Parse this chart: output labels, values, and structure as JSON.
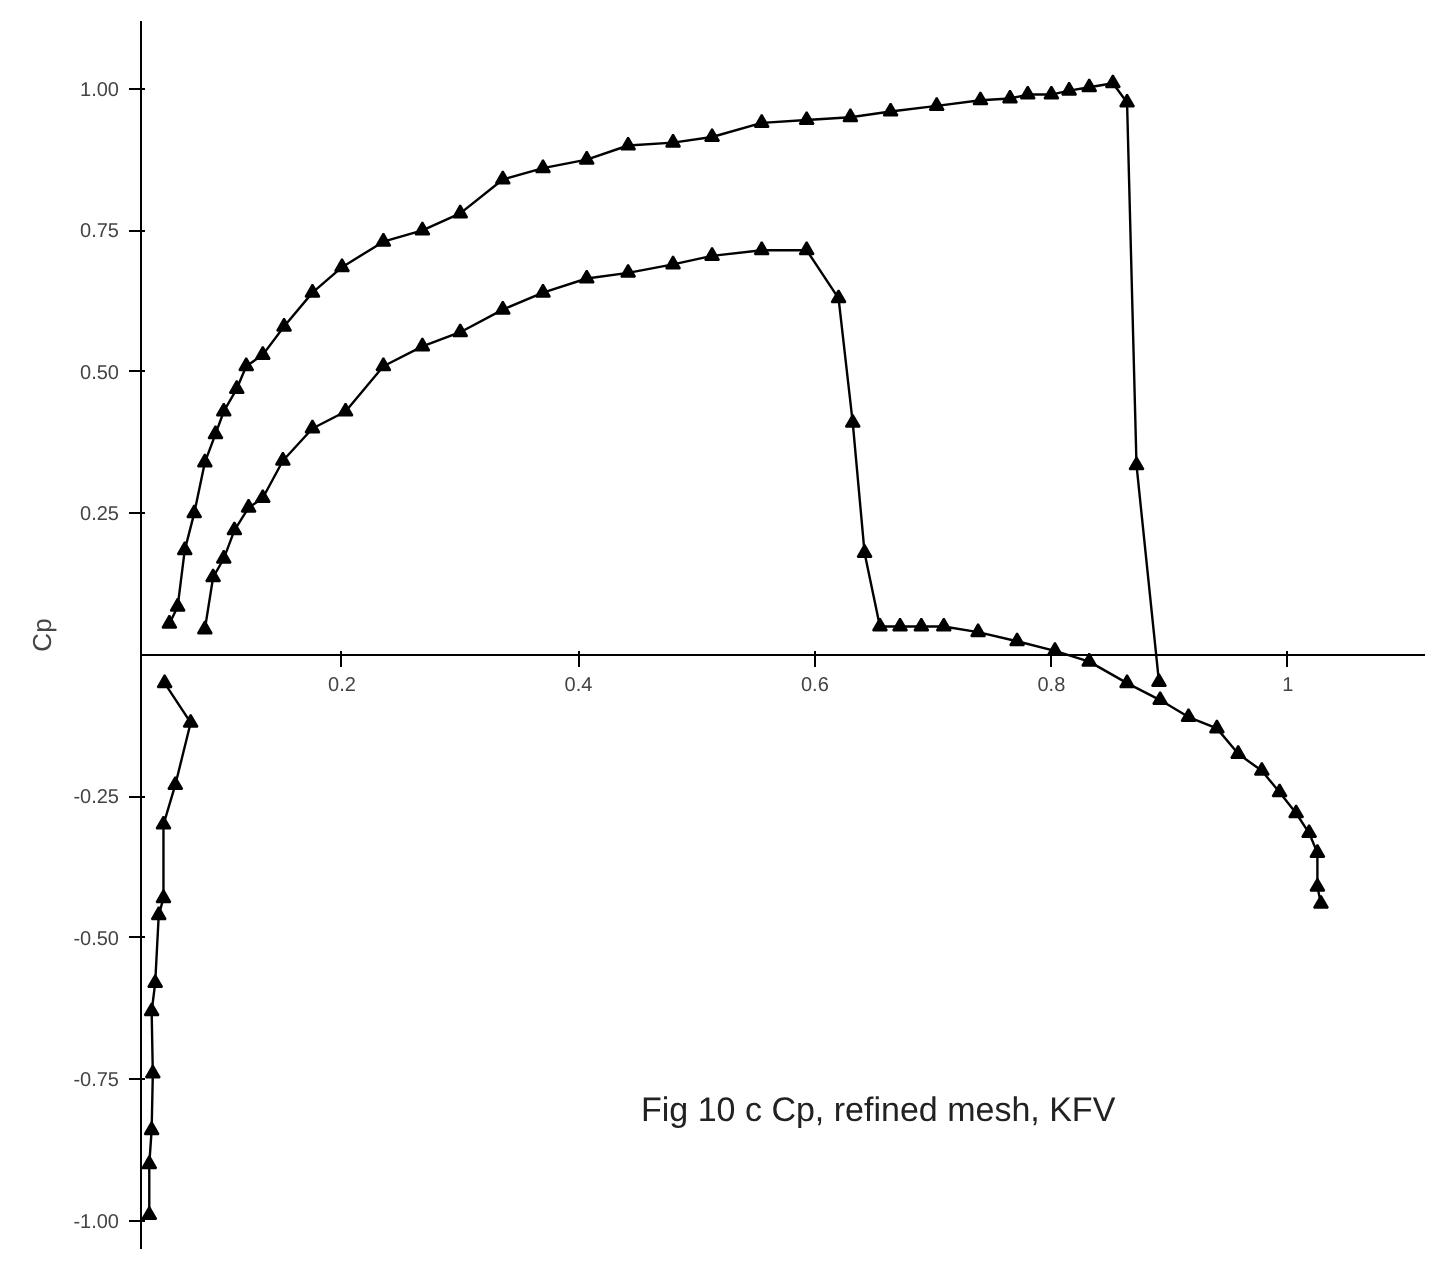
{
  "chart_data": {
    "type": "line",
    "ylabel": "Cp",
    "xlim": [
      0.03,
      1.116
    ],
    "ylim": [
      -1.05,
      1.12
    ],
    "xticks": [
      0.2,
      0.4,
      0.6,
      0.8,
      1.0
    ],
    "yticks": [
      {
        "value": 1.0,
        "label": "1.00"
      },
      {
        "value": 0.75,
        "label": "0.75"
      },
      {
        "value": 0.5,
        "label": "0.50"
      },
      {
        "value": 0.25,
        "label": "0.25"
      },
      {
        "value": -0.25,
        "label": "-0.25"
      },
      {
        "value": -0.5,
        "label": "-0.50"
      },
      {
        "value": -0.75,
        "label": "-0.75"
      },
      {
        "value": -1.0,
        "label": "-1.00"
      }
    ],
    "grid": false,
    "marker": "triangle",
    "line_style": "solid",
    "annotations": [
      "Fig 10 c    Cp, refined mesh, KFV"
    ],
    "series": [
      {
        "color": "#000000",
        "x": [
          0.054,
          0.061,
          0.067,
          0.075,
          0.084,
          0.093,
          0.1,
          0.111,
          0.119,
          0.133,
          0.151,
          0.175,
          0.2,
          0.235,
          0.268,
          0.3,
          0.336,
          0.37,
          0.407,
          0.442,
          0.48,
          0.513,
          0.555,
          0.593,
          0.63,
          0.664,
          0.703,
          0.74,
          0.765,
          0.78,
          0.8,
          0.815,
          0.832,
          0.852,
          0.864,
          0.872,
          0.891
        ],
        "values": [
          0.055,
          0.085,
          0.185,
          0.25,
          0.34,
          0.39,
          0.43,
          0.47,
          0.51,
          0.53,
          0.58,
          0.64,
          0.685,
          0.73,
          0.75,
          0.78,
          0.84,
          0.86,
          0.875,
          0.9,
          0.905,
          0.915,
          0.94,
          0.945,
          0.95,
          0.96,
          0.97,
          0.98,
          0.983,
          0.99,
          0.99,
          0.997,
          1.003,
          1.01,
          0.976,
          0.335,
          -0.048
        ]
      },
      {
        "color": "#000000",
        "x": [
          0.084,
          0.091,
          0.1,
          0.109,
          0.121,
          0.133,
          0.15,
          0.175,
          0.203,
          0.235,
          0.268,
          0.3,
          0.336,
          0.37,
          0.407,
          0.442,
          0.48,
          0.513,
          0.555,
          0.593,
          0.62,
          0.632,
          0.642,
          0.655,
          0.672,
          0.69,
          0.709,
          0.738,
          0.771,
          0.803,
          0.832,
          0.864,
          0.892,
          0.916,
          0.94,
          0.958,
          0.978,
          0.993,
          1.007,
          1.018,
          1.025,
          1.025,
          1.028
        ],
        "values": [
          0.045,
          0.137,
          0.17,
          0.22,
          0.26,
          0.277,
          0.343,
          0.4,
          0.43,
          0.51,
          0.545,
          0.57,
          0.61,
          0.64,
          0.665,
          0.675,
          0.69,
          0.705,
          0.715,
          0.715,
          0.63,
          0.41,
          0.18,
          0.05,
          0.05,
          0.05,
          0.05,
          0.04,
          0.024,
          0.007,
          -0.012,
          -0.05,
          -0.08,
          -0.11,
          -0.13,
          -0.175,
          -0.205,
          -0.243,
          -0.28,
          -0.315,
          -0.35,
          -0.41,
          -0.44
        ]
      },
      {
        "color": "#000000",
        "x": [
          0.05,
          0.072,
          0.059,
          0.049,
          0.049,
          0.045,
          0.042,
          0.039,
          0.04,
          0.039,
          0.037,
          0.037
        ],
        "values": [
          -0.05,
          -0.12,
          -0.23,
          -0.3,
          -0.43,
          -0.46,
          -0.58,
          -0.63,
          -0.74,
          -0.84,
          -0.9,
          -0.99
        ]
      }
    ]
  }
}
